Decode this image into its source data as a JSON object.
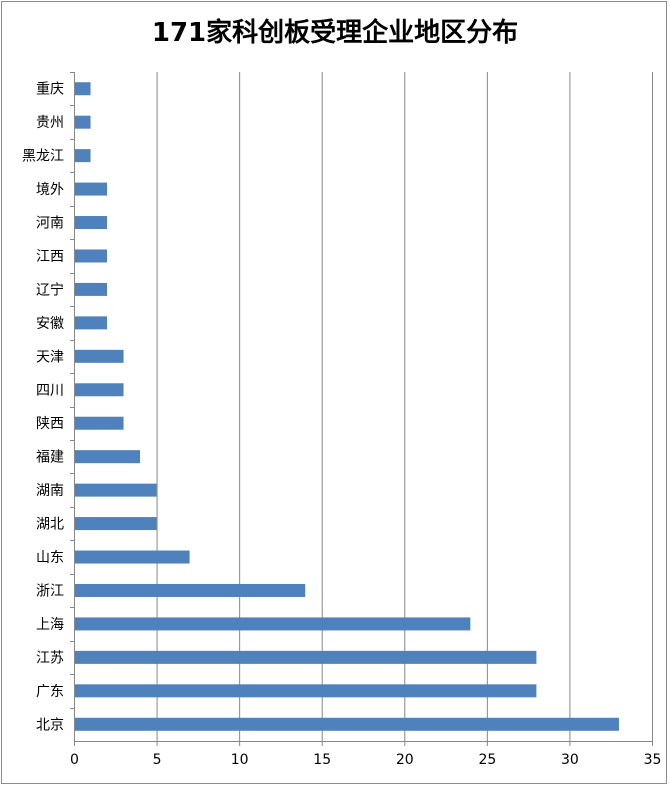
{
  "chart_data": {
    "type": "bar",
    "orientation": "horizontal",
    "title": "171家科创板受理企业地区分布",
    "categories": [
      "重庆",
      "贵州",
      "黑龙江",
      "境外",
      "河南",
      "江西",
      "辽宁",
      "安徽",
      "天津",
      "四川",
      "陕西",
      "福建",
      "湖南",
      "湖北",
      "山东",
      "浙江",
      "上海",
      "江苏",
      "广东",
      "北京"
    ],
    "values": [
      1,
      1,
      1,
      2,
      2,
      2,
      2,
      2,
      3,
      3,
      3,
      4,
      5,
      5,
      7,
      14,
      24,
      28,
      28,
      33
    ],
    "xlim": [
      0,
      35
    ],
    "xticks": [
      0,
      5,
      10,
      15,
      20,
      25,
      30,
      35
    ],
    "xlabel": "",
    "ylabel": "",
    "grid": "vertical",
    "legend": "none",
    "bar_color": "#4f81bd",
    "grid_color": "#878787"
  }
}
